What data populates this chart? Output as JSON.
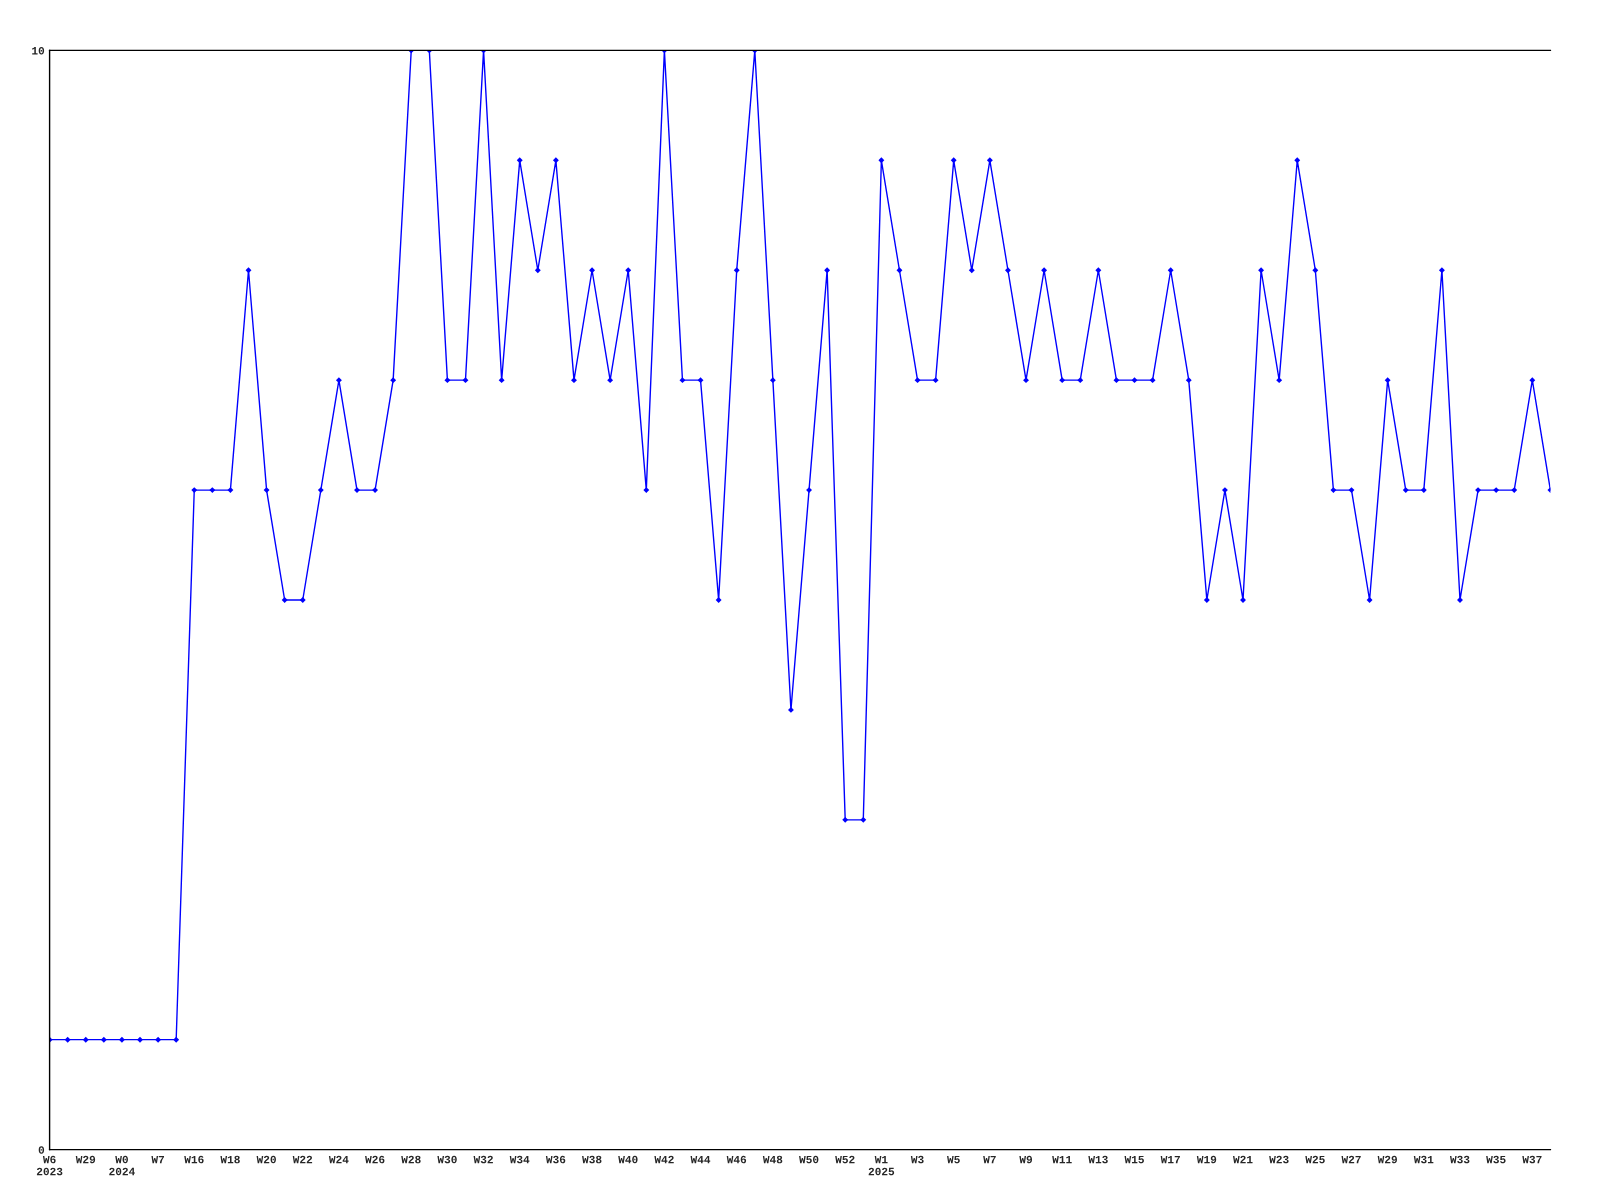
{
  "chart_data": {
    "type": "line",
    "categories": [
      "W6\n2023",
      null,
      "W29",
      null,
      "W0\n2024",
      null,
      "W7",
      null,
      "W16",
      null,
      "W18",
      null,
      "W20",
      null,
      "W22",
      null,
      "W24",
      null,
      "W26",
      null,
      "W28",
      null,
      "W30",
      null,
      "W32",
      null,
      "W34",
      null,
      "W36",
      null,
      "W38",
      null,
      "W40",
      null,
      "W42",
      null,
      "W44",
      null,
      "W46",
      null,
      "W48",
      null,
      "W50",
      null,
      "W52",
      null,
      "W1\n2025",
      null,
      "W3",
      null,
      "W5",
      null,
      "W7",
      null,
      "W9",
      null,
      "W11",
      null,
      "W13",
      null,
      "W15",
      null,
      "W17",
      null,
      "W19",
      null,
      "W21",
      null,
      "W23",
      null,
      "W25",
      null,
      "W27",
      null,
      "W29",
      null,
      "W31",
      null,
      "W33",
      null,
      "W35",
      null,
      "W37",
      null
    ],
    "series": [
      {
        "color": "#0000ff",
        "values": [
          1,
          1,
          1,
          1,
          1,
          1,
          1,
          1,
          6,
          6,
          6,
          8,
          6,
          5,
          5,
          6,
          7,
          6,
          6,
          7,
          10,
          10,
          7,
          7,
          10,
          7,
          9,
          8,
          9,
          7,
          8,
          7,
          8,
          6,
          10,
          7,
          7,
          5,
          8,
          10,
          7,
          4,
          6,
          8,
          3,
          3,
          9,
          8,
          7,
          7,
          9,
          8,
          9,
          8,
          7,
          8,
          7,
          7,
          8,
          7,
          7,
          7,
          8,
          7,
          5,
          6,
          5,
          8,
          7,
          9,
          8,
          6,
          6,
          5,
          7,
          6,
          6,
          8,
          5,
          6,
          6,
          6,
          7,
          6
        ]
      }
    ],
    "ylim": [
      0,
      10
    ],
    "yticks": [
      0,
      10
    ],
    "grid": false,
    "legend": false,
    "marker": "diamond",
    "line_style": "solid"
  }
}
